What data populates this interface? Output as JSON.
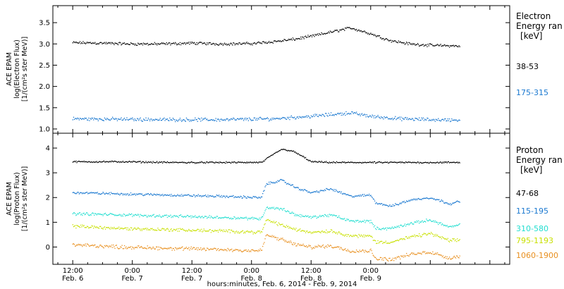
{
  "chart_data": [
    {
      "type": "scatter",
      "panel": "electron",
      "ylabel": [
        "ACE EPAM",
        "log(Electron Flux)",
        "[1/(cm²s ster MeV)]"
      ],
      "ylim": [
        0.9,
        3.9
      ],
      "yticks": [
        1.0,
        1.5,
        2.0,
        2.5,
        3.0,
        3.5
      ],
      "ytick_labels": [
        "1.0",
        "1.5",
        "2.0",
        "2.5",
        "3.0",
        "3.5"
      ],
      "legend": {
        "title": [
          "Electron",
          "Energy ran",
          "[keV]"
        ]
      },
      "series": [
        {
          "name": "38-53",
          "color": "#000000",
          "x": [
            0,
            6,
            12,
            18,
            24,
            30,
            36,
            40,
            44,
            48,
            52,
            56,
            60,
            64,
            68,
            72,
            78
          ],
          "y": [
            3.03,
            3.02,
            3.0,
            3.0,
            3.02,
            3.0,
            3.01,
            3.05,
            3.1,
            3.18,
            3.28,
            3.38,
            3.24,
            3.08,
            3.0,
            2.97,
            2.95
          ],
          "noise": 0.04
        },
        {
          "name": "175-315",
          "color": "#1a78d0",
          "x": [
            0,
            10,
            20,
            30,
            40,
            48,
            52,
            56,
            60,
            66,
            72,
            78
          ],
          "y": [
            1.24,
            1.23,
            1.22,
            1.22,
            1.24,
            1.3,
            1.34,
            1.38,
            1.3,
            1.24,
            1.22,
            1.21
          ],
          "noise": 0.05
        }
      ]
    },
    {
      "type": "scatter",
      "panel": "proton",
      "ylabel": [
        "ACE EPAM",
        "log(Proton Flux)",
        "[1/(cm²s ster MeV)]"
      ],
      "ylim": [
        -0.7,
        4.6
      ],
      "yticks": [
        0,
        1,
        2,
        3,
        4
      ],
      "ytick_labels": [
        "0",
        "1",
        "2",
        "3",
        "4"
      ],
      "legend": {
        "title": [
          "Proton",
          "Energy ran",
          "[keV]"
        ]
      },
      "series": [
        {
          "name": "47-68",
          "color": "#000000",
          "x": [
            0,
            10,
            20,
            30,
            38,
            40,
            42,
            44,
            46,
            48,
            52,
            60,
            70,
            78
          ],
          "y": [
            3.45,
            3.45,
            3.42,
            3.42,
            3.42,
            3.7,
            3.95,
            3.9,
            3.7,
            3.45,
            3.42,
            3.42,
            3.42,
            3.42
          ],
          "noise": 0.04
        },
        {
          "name": "115-195",
          "color": "#1a78d0",
          "x": [
            0,
            10,
            20,
            30,
            38,
            39,
            42,
            45,
            48,
            52,
            56,
            60,
            61,
            64,
            68,
            72,
            76,
            78
          ],
          "y": [
            2.2,
            2.15,
            2.1,
            2.05,
            2.0,
            2.55,
            2.7,
            2.4,
            2.2,
            2.35,
            2.05,
            2.1,
            1.8,
            1.65,
            1.9,
            2.0,
            1.75,
            1.85
          ],
          "noise": 0.06
        },
        {
          "name": "310-580",
          "color": "#22ded0",
          "x": [
            0,
            10,
            20,
            30,
            38,
            39,
            42,
            45,
            48,
            52,
            56,
            60,
            61,
            64,
            68,
            72,
            76,
            78
          ],
          "y": [
            1.35,
            1.3,
            1.25,
            1.2,
            1.15,
            1.6,
            1.55,
            1.3,
            1.2,
            1.3,
            1.05,
            1.05,
            0.75,
            0.75,
            0.95,
            1.1,
            0.8,
            0.9
          ],
          "noise": 0.07
        },
        {
          "name": "795-1193",
          "color": "#c8e000",
          "x": [
            0,
            10,
            20,
            30,
            38,
            39,
            42,
            45,
            48,
            52,
            56,
            60,
            61,
            64,
            68,
            72,
            76,
            78
          ],
          "y": [
            0.85,
            0.75,
            0.7,
            0.65,
            0.6,
            1.1,
            0.9,
            0.7,
            0.6,
            0.65,
            0.45,
            0.45,
            0.2,
            0.2,
            0.4,
            0.55,
            0.25,
            0.3
          ],
          "noise": 0.08
        },
        {
          "name": "1060-1900",
          "color": "#e89020",
          "x": [
            0,
            10,
            20,
            30,
            38,
            39,
            42,
            45,
            48,
            52,
            56,
            60,
            61,
            64,
            68,
            72,
            76,
            78
          ],
          "y": [
            0.1,
            0.0,
            -0.05,
            -0.1,
            -0.15,
            0.5,
            0.3,
            0.1,
            0.0,
            0.05,
            -0.15,
            -0.15,
            -0.45,
            -0.5,
            -0.3,
            -0.2,
            -0.45,
            -0.35
          ],
          "noise": 0.09
        }
      ]
    }
  ],
  "x_axis": {
    "range_hours": [
      -4,
      88
    ],
    "ticks": [
      {
        "h": 0,
        "time": "12:00",
        "date": "Feb. 6"
      },
      {
        "h": 12,
        "time": "0:00",
        "date": "Feb. 7"
      },
      {
        "h": 24,
        "time": "12:00",
        "date": "Feb. 7"
      },
      {
        "h": 36,
        "time": "0:00",
        "date": "Feb. 8"
      },
      {
        "h": 48,
        "time": "12:00",
        "date": "Feb. 8"
      },
      {
        "h": 60,
        "time": "0:00",
        "date": "Feb. 9"
      }
    ],
    "label": "hours:minutes, Feb.  6, 2014 - Feb.  9, 2014"
  }
}
